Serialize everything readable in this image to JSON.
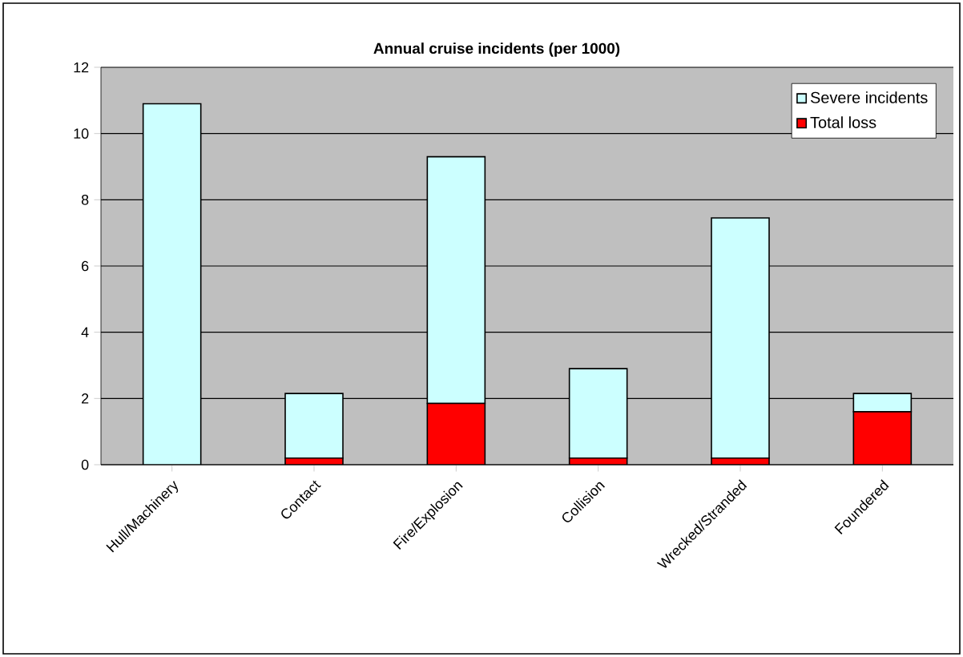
{
  "chart_data": {
    "type": "bar",
    "title": "Annual cruise incidents (per 1000)",
    "categories": [
      "Hull/Machinery",
      "Contact",
      "Fire/Explosion",
      "Collision",
      "Wrecked/Stranded",
      "Foundered"
    ],
    "stacked": true,
    "series": [
      {
        "name": "Total loss",
        "color": "#ff0000",
        "values": [
          0,
          0.2,
          1.85,
          0.2,
          0.2,
          1.6
        ]
      },
      {
        "name": "Severe incidents",
        "color": "#ccffff",
        "values": [
          10.9,
          1.95,
          7.45,
          2.7,
          7.25,
          0.55
        ]
      }
    ],
    "ylim": [
      0,
      12
    ],
    "yticks": [
      0,
      2,
      4,
      6,
      8,
      10,
      12
    ],
    "grid": "y",
    "legend": "top right"
  }
}
